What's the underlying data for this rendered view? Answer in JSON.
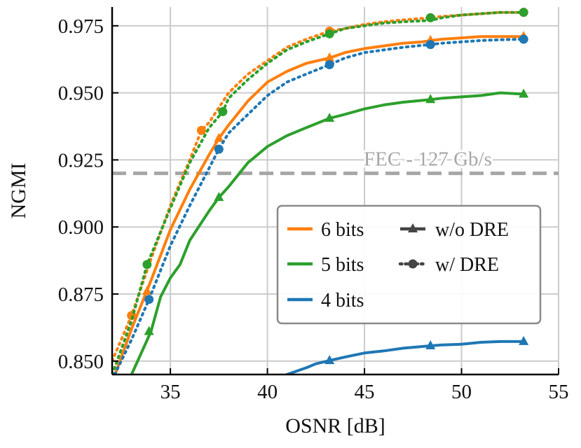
{
  "chart_data": {
    "type": "line",
    "xlabel": "OSNR [dB]",
    "ylabel": "NGMI",
    "xlim": [
      32,
      55
    ],
    "ylim": [
      0.845,
      0.982
    ],
    "xticks": [
      35,
      40,
      45,
      50,
      55
    ],
    "xtick_labels": [
      "35",
      "40",
      "45",
      "50",
      "55"
    ],
    "yticks": [
      0.85,
      0.875,
      0.9,
      0.925,
      0.95,
      0.975
    ],
    "ytick_labels": [
      "0.850",
      "0.875",
      "0.900",
      "0.925",
      "0.950",
      "0.975"
    ],
    "grid": true,
    "threshold": {
      "y": 0.92,
      "label": "FEC - 127 Gb/s",
      "color": "#a6a6a6"
    },
    "legend": {
      "placement": "lower-right",
      "color_entries": [
        {
          "label": "6 bits",
          "color": "#ff7f0e"
        },
        {
          "label": "5 bits",
          "color": "#2ca02c"
        },
        {
          "label": "4 bits",
          "color": "#1f77b4"
        }
      ],
      "style_entries": [
        {
          "label": "w/o DRE",
          "style": "solid-triangle"
        },
        {
          "label": "w/  DRE",
          "style": "dotted-circle"
        }
      ]
    },
    "series": [
      {
        "group": "6 bits",
        "variant": "w/o DRE",
        "color": "#ff7f0e",
        "x": [
          32,
          33,
          34,
          35,
          36,
          37,
          37.5,
          38,
          39,
          40,
          41,
          42,
          43.2,
          44,
          45,
          46,
          47,
          48,
          48.4,
          49,
          50,
          51,
          52,
          53.2
        ],
        "y": [
          0.842,
          0.862,
          0.88,
          0.899,
          0.914,
          0.927,
          0.933,
          0.938,
          0.947,
          0.954,
          0.958,
          0.961,
          0.963,
          0.965,
          0.9665,
          0.9675,
          0.9685,
          0.969,
          0.9695,
          0.97,
          0.9705,
          0.971,
          0.971,
          0.971
        ],
        "markers": [
          [
            33.8,
            0.876
          ],
          [
            37.5,
            0.933
          ],
          [
            43.2,
            0.963
          ],
          [
            48.4,
            0.9695
          ],
          [
            53.2,
            0.971
          ]
        ]
      },
      {
        "group": "6 bits",
        "variant": "w/ DRE",
        "color": "#ff7f0e",
        "x": [
          32,
          33,
          34,
          35,
          36,
          36.6,
          37,
          38,
          39,
          40,
          41,
          42,
          43.2,
          44,
          45,
          46,
          47,
          48.4,
          49,
          50,
          51,
          52,
          53.2
        ],
        "y": [
          0.85,
          0.867,
          0.888,
          0.908,
          0.925,
          0.936,
          0.939,
          0.95,
          0.957,
          0.962,
          0.967,
          0.97,
          0.973,
          0.974,
          0.9755,
          0.9765,
          0.9772,
          0.978,
          0.9785,
          0.979,
          0.9795,
          0.98,
          0.98
        ],
        "markers": [
          [
            33,
            0.867
          ],
          [
            36.6,
            0.936
          ],
          [
            43.2,
            0.973
          ],
          [
            48.4,
            0.978
          ],
          [
            53.2,
            0.98
          ]
        ]
      },
      {
        "group": "5 bits",
        "variant": "w/o DRE",
        "color": "#2ca02c",
        "x": [
          33,
          34,
          34.5,
          35,
          35.5,
          36,
          37,
          37.5,
          38,
          39,
          40,
          41,
          42,
          43.2,
          44,
          45,
          46,
          47,
          48.4,
          49,
          50,
          51,
          52,
          53.2
        ],
        "y": [
          0.845,
          0.861,
          0.874,
          0.881,
          0.886,
          0.895,
          0.906,
          0.911,
          0.915,
          0.924,
          0.93,
          0.934,
          0.937,
          0.9405,
          0.942,
          0.944,
          0.9455,
          0.9465,
          0.9475,
          0.948,
          0.9485,
          0.949,
          0.95,
          0.9495
        ],
        "markers": [
          [
            33.9,
            0.861
          ],
          [
            37.5,
            0.911
          ],
          [
            43.2,
            0.9405
          ],
          [
            48.4,
            0.9475
          ],
          [
            53.2,
            0.9495
          ]
        ]
      },
      {
        "group": "5 bits",
        "variant": "w/ DRE",
        "color": "#2ca02c",
        "x": [
          32,
          33,
          33.8,
          35,
          36,
          37,
          37.7,
          38,
          39,
          40,
          41,
          42,
          43.2,
          44,
          45,
          46,
          47,
          48.4,
          49,
          50,
          51,
          52,
          53.2
        ],
        "y": [
          0.845,
          0.865,
          0.886,
          0.907,
          0.924,
          0.937,
          0.943,
          0.948,
          0.955,
          0.961,
          0.966,
          0.969,
          0.972,
          0.974,
          0.975,
          0.976,
          0.9765,
          0.977,
          0.978,
          0.979,
          0.9795,
          0.98,
          0.98
        ],
        "markers": [
          [
            33.8,
            0.886
          ],
          [
            37.7,
            0.943
          ],
          [
            43.2,
            0.972
          ],
          [
            48.4,
            0.978
          ],
          [
            53.2,
            0.98
          ]
        ]
      },
      {
        "group": "4 bits",
        "variant": "w/o DRE",
        "color": "#1f77b4",
        "x": [
          41,
          42,
          42.5,
          43.2,
          44,
          45,
          46,
          47,
          48.4,
          49,
          50,
          51,
          52,
          53.2
        ],
        "y": [
          0.845,
          0.8475,
          0.849,
          0.8502,
          0.8515,
          0.853,
          0.8538,
          0.8548,
          0.8557,
          0.856,
          0.8563,
          0.857,
          0.8573,
          0.8573
        ],
        "markers": [
          [
            43.2,
            0.8502
          ],
          [
            48.4,
            0.8557
          ],
          [
            53.2,
            0.8573
          ]
        ]
      },
      {
        "group": "4 bits",
        "variant": "w/ DRE",
        "color": "#1f77b4",
        "x": [
          32,
          33,
          33.9,
          35,
          36,
          37,
          37.5,
          38,
          39,
          40,
          41,
          42,
          43.2,
          44,
          45,
          46,
          47,
          48.4,
          49,
          50,
          51,
          52,
          53.2
        ],
        "y": [
          0.843,
          0.858,
          0.873,
          0.893,
          0.908,
          0.922,
          0.929,
          0.935,
          0.942,
          0.949,
          0.954,
          0.957,
          0.9605,
          0.963,
          0.965,
          0.966,
          0.967,
          0.968,
          0.9685,
          0.969,
          0.9695,
          0.9698,
          0.97
        ],
        "markers": [
          [
            33.9,
            0.873
          ],
          [
            37.5,
            0.929
          ],
          [
            43.2,
            0.9605
          ],
          [
            48.4,
            0.968
          ],
          [
            53.2,
            0.97
          ]
        ]
      }
    ]
  }
}
